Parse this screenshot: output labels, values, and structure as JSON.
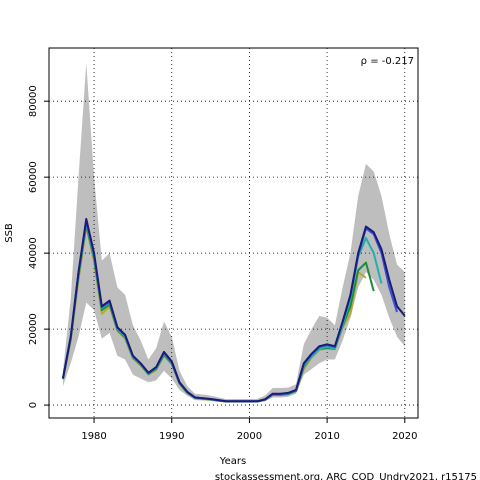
{
  "chart_data": {
    "type": "line",
    "x_label": "Years",
    "y_label": "SSB",
    "annotation": "ρ = -0.217",
    "footer": "stockassessment.org, ARC_COD_Undrv2021, r15175",
    "x": [
      1976,
      1977,
      1978,
      1979,
      1980,
      1981,
      1982,
      1983,
      1984,
      1985,
      1986,
      1987,
      1988,
      1989,
      1990,
      1991,
      1992,
      1993,
      1994,
      1995,
      1996,
      1997,
      1998,
      1999,
      2000,
      2001,
      2002,
      2003,
      2004,
      2005,
      2006,
      2007,
      2008,
      2009,
      2010,
      2011,
      2012,
      2013,
      2014,
      2015,
      2016,
      2017,
      2018,
      2019,
      2020
    ],
    "band": {
      "color": "#bebebe",
      "upper": [
        9000,
        28000,
        60000,
        90000,
        60000,
        38000,
        40000,
        31000,
        29000,
        21000,
        17000,
        12000,
        15000,
        22000,
        18000,
        9000,
        5000,
        3000,
        2800,
        2500,
        2000,
        1600,
        1600,
        1600,
        1600,
        1600,
        2500,
        4500,
        4500,
        4600,
        5500,
        16000,
        20000,
        23500,
        23000,
        21000,
        31000,
        40000,
        55000,
        63500,
        61500,
        55000,
        45000,
        37000,
        35000
      ],
      "lower": [
        5000,
        11000,
        18000,
        27000,
        25000,
        17500,
        19000,
        13000,
        12000,
        8000,
        7000,
        6000,
        6500,
        9000,
        7000,
        4000,
        2500,
        1300,
        1200,
        1100,
        900,
        700,
        700,
        700,
        700,
        700,
        1000,
        2000,
        2000,
        2200,
        3000,
        8000,
        9500,
        11000,
        12000,
        12000,
        17000,
        23000,
        31000,
        35000,
        33000,
        29000,
        23000,
        18000,
        15500
      ]
    },
    "series": [
      {
        "color": "#1c1c78",
        "values": [
          7000,
          18000,
          35000,
          49000,
          40000,
          26000,
          27500,
          20500,
          18500,
          13000,
          11000,
          8500,
          10000,
          14000,
          11500,
          6000,
          3500,
          2000,
          1800,
          1600,
          1300,
          1000,
          1000,
          1000,
          1000,
          1000,
          1500,
          3000,
          3000,
          3200,
          4000,
          11000,
          13500,
          15500,
          16000,
          15500,
          22000,
          29000,
          40000,
          47000,
          45500,
          41000,
          33000,
          26000,
          23500
        ]
      },
      {
        "color": "#3a50d0",
        "values": [
          7000,
          18000,
          35000,
          48500,
          39500,
          25800,
          27200,
          20300,
          18300,
          12900,
          10900,
          8400,
          9900,
          13800,
          11300,
          5900,
          3400,
          2000,
          1800,
          1600,
          1300,
          1000,
          1000,
          1000,
          1000,
          1000,
          1500,
          2900,
          2900,
          3100,
          3900,
          10800,
          13300,
          15300,
          15800,
          15300,
          21800,
          28800,
          39500,
          46500,
          45000,
          40000,
          31000,
          24500,
          null
        ]
      },
      {
        "color": "#20b2aa",
        "values": [
          7000,
          17800,
          34500,
          48000,
          39000,
          25500,
          27000,
          20000,
          18000,
          12700,
          10800,
          8300,
          9700,
          13600,
          11100,
          5800,
          3300,
          1900,
          1700,
          1500,
          1200,
          950,
          950,
          950,
          950,
          950,
          1400,
          2800,
          2800,
          3000,
          3800,
          10300,
          12800,
          14800,
          15300,
          14900,
          21000,
          28000,
          39000,
          44000,
          40000,
          32000,
          null,
          null,
          null
        ]
      },
      {
        "color": "#1e8c3a",
        "values": [
          6900,
          17500,
          34000,
          47500,
          38500,
          25000,
          26500,
          19800,
          17800,
          12500,
          10600,
          8200,
          9500,
          13300,
          10900,
          5700,
          3200,
          1900,
          1700,
          1500,
          1200,
          950,
          950,
          950,
          950,
          950,
          1400,
          2700,
          2700,
          2900,
          3700,
          10000,
          12800,
          14800,
          15000,
          14800,
          20800,
          26000,
          35500,
          37500,
          30000,
          null,
          null,
          null,
          null
        ]
      },
      {
        "color": "#b5a830",
        "values": [
          6800,
          17000,
          33000,
          47000,
          38000,
          24000,
          26000,
          19500,
          17500,
          12300,
          10500,
          8000,
          9300,
          13000,
          10800,
          5600,
          3200,
          1800,
          1600,
          1400,
          1100,
          900,
          900,
          900,
          900,
          900,
          1300,
          2700,
          2700,
          2900,
          3700,
          9500,
          12500,
          14500,
          15000,
          14800,
          20500,
          24000,
          35000,
          33500,
          null,
          null,
          null,
          null,
          null
        ]
      }
    ],
    "xlim": [
      1974.2,
      2021.7
    ],
    "xticks": [
      1980,
      1990,
      2000,
      2010,
      2020
    ],
    "ylim": [
      -3400,
      94000
    ],
    "yticks": [
      0,
      20000,
      40000,
      60000,
      80000
    ],
    "grid": true
  }
}
